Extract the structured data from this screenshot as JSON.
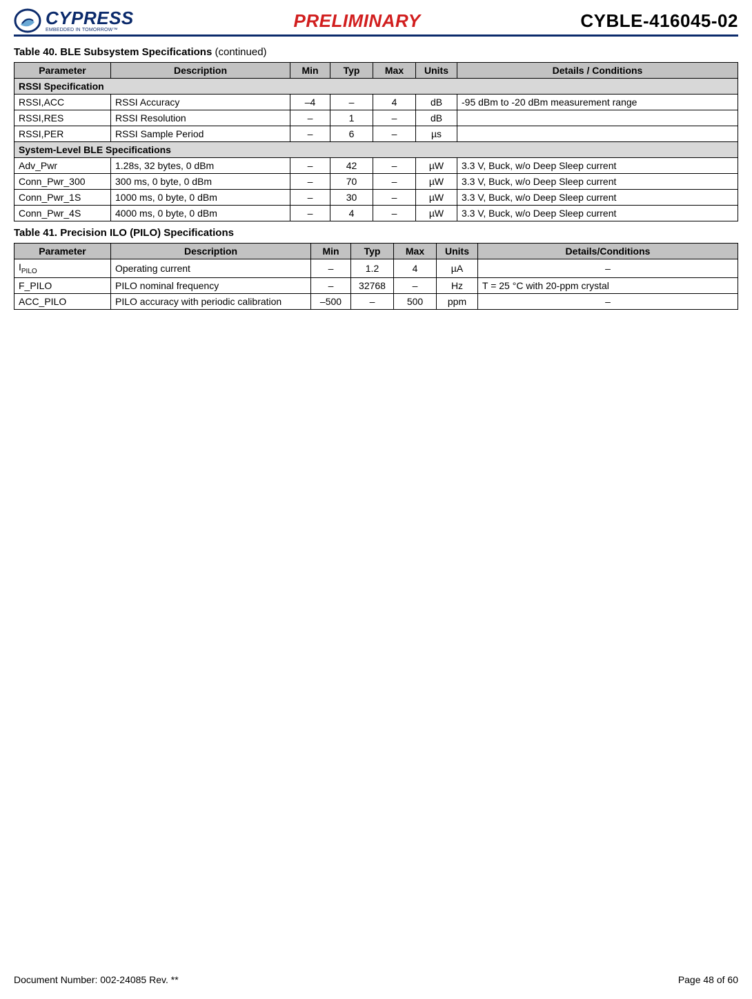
{
  "header": {
    "logo_main": "CYPRESS",
    "logo_sub": "EMBEDDED IN TOMORROW™",
    "preliminary": "PRELIMINARY",
    "part_number": "CYBLE-416045-02"
  },
  "table40": {
    "caption_bold": "Table 40.  BLE Subsystem Specifications ",
    "caption_rest": "(continued)",
    "columns": [
      "Parameter",
      "Description",
      "Min",
      "Typ",
      "Max",
      "Units",
      "Details / Conditions"
    ],
    "sections": [
      {
        "title": "RSSI Specification",
        "rows": [
          {
            "param": "RSSI,ACC",
            "desc": "RSSI Accuracy",
            "min": "–4",
            "typ": "–",
            "max": "4",
            "units": "dB",
            "details": "-95 dBm to -20 dBm measurement range"
          },
          {
            "param": "RSSI,RES",
            "desc": "RSSI Resolution",
            "min": "–",
            "typ": "1",
            "max": "–",
            "units": "dB",
            "details": ""
          },
          {
            "param": "RSSI,PER",
            "desc": "RSSI Sample Period",
            "min": "–",
            "typ": "6",
            "max": "–",
            "units": "µs",
            "details": ""
          }
        ]
      },
      {
        "title": "System-Level BLE Specifications",
        "rows": [
          {
            "param": "Adv_Pwr",
            "desc": "1.28s, 32 bytes, 0 dBm",
            "min": "–",
            "typ": "42",
            "max": "–",
            "units": "µW",
            "details": "3.3 V, Buck, w/o Deep Sleep current"
          },
          {
            "param": "Conn_Pwr_300",
            "desc": "300 ms, 0 byte, 0 dBm",
            "min": "–",
            "typ": "70",
            "max": "–",
            "units": "µW",
            "details": "3.3 V, Buck, w/o Deep Sleep current"
          },
          {
            "param": "Conn_Pwr_1S",
            "desc": "1000 ms, 0 byte, 0 dBm",
            "min": "–",
            "typ": "30",
            "max": "–",
            "units": "µW",
            "details": "3.3 V, Buck, w/o Deep Sleep current"
          },
          {
            "param": "Conn_Pwr_4S",
            "desc": "4000 ms, 0 byte, 0 dBm",
            "min": "–",
            "typ": "4",
            "max": "–",
            "units": "µW",
            "details": "3.3 V, Buck, w/o Deep Sleep current"
          }
        ]
      }
    ]
  },
  "table41": {
    "caption_bold": "Table 41.  Precision ILO (PILO) Specifications",
    "columns": [
      "Parameter",
      "Description",
      "Min",
      "Typ",
      "Max",
      "Units",
      "Details/Conditions"
    ],
    "rows": [
      {
        "param_html": "I<span class=\"sub\">PILO</span>",
        "desc": "Operating current",
        "min": "–",
        "typ": "1.2",
        "max": "4",
        "units": "µA",
        "details": "–",
        "details_align": "center"
      },
      {
        "param_html": "F_PILO",
        "desc": "PILO nominal frequency",
        "min": "–",
        "typ": "32768",
        "max": "–",
        "units": "Hz",
        "details": "T = 25 °C with 20-ppm crystal",
        "details_align": "left"
      },
      {
        "param_html": "ACC_PILO",
        "desc": "PILO accuracy with periodic calibration",
        "min": "–500",
        "typ": "–",
        "max": "500",
        "units": "ppm",
        "details": "–",
        "details_align": "center"
      }
    ]
  },
  "footer": {
    "doc_number": "Document Number: 002-24085 Rev. **",
    "page": "Page 48 of 60"
  },
  "colors": {
    "brand_blue": "#0b2a6b",
    "prelim_red": "#d11e1e",
    "header_bg": "#c2c2c2",
    "section_bg": "#d8d8d8"
  }
}
